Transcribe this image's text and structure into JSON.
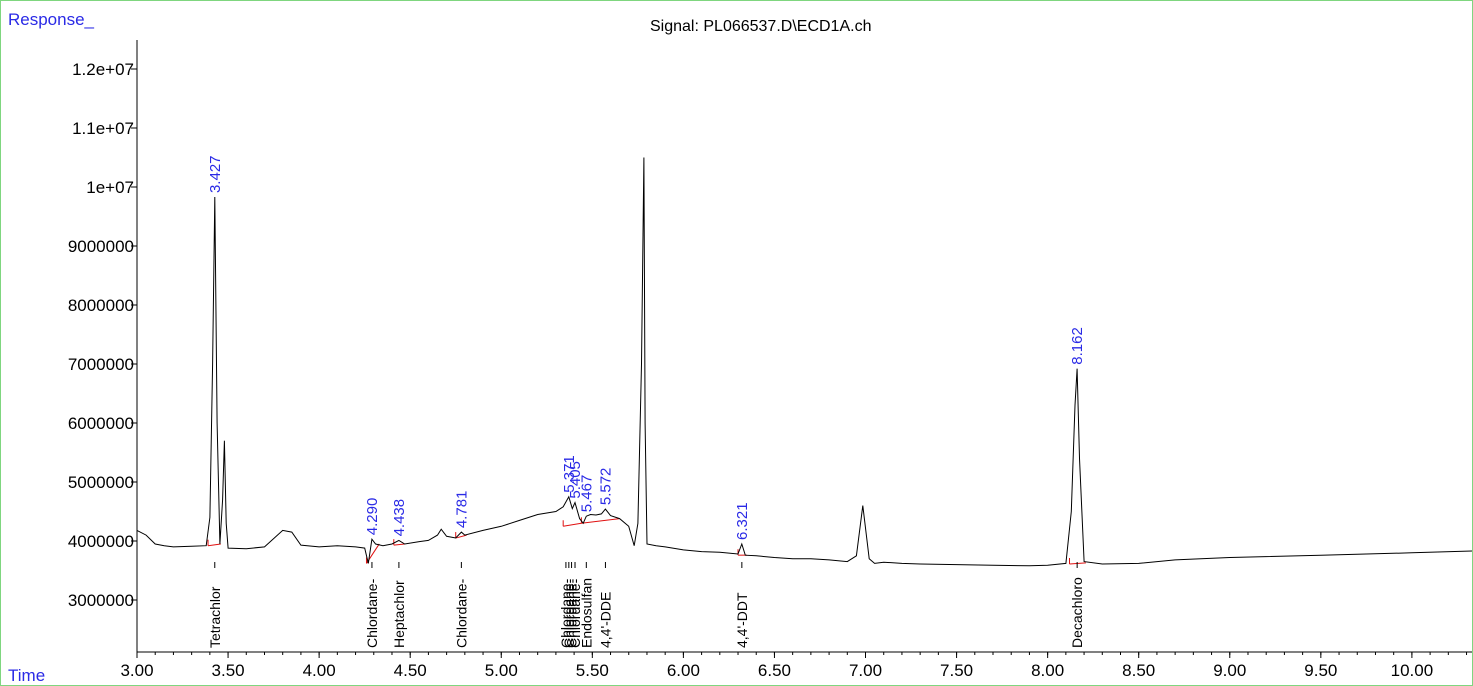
{
  "header": {
    "y_caption": "Response_",
    "x_caption": "Time",
    "title": "Signal: PL066537.D\\ECD1A.ch"
  },
  "chart_data": {
    "type": "line",
    "title": "Signal: PL066537.D\\ECD1A.ch",
    "xlabel": "Time",
    "ylabel": "Response_",
    "xlim": [
      3.0,
      10.33
    ],
    "ylim": [
      2150000,
      12600000
    ],
    "grid": false,
    "x_ticks": [
      3.0,
      3.5,
      4.0,
      4.5,
      5.0,
      5.5,
      6.0,
      6.5,
      7.0,
      7.5,
      8.0,
      8.5,
      9.0,
      9.5,
      10.0
    ],
    "x_tick_labels": [
      "3.00",
      "3.50",
      "4.00",
      "4.50",
      "5.00",
      "5.50",
      "6.00",
      "6.50",
      "7.00",
      "7.50",
      "8.00",
      "8.50",
      "9.00",
      "9.50",
      "10.00"
    ],
    "y_ticks": [
      3000000,
      4000000,
      5000000,
      6000000,
      7000000,
      8000000,
      9000000,
      10000000,
      11000000,
      12000000
    ],
    "y_tick_labels": [
      "3000000",
      "4000000",
      "5000000",
      "6000000",
      "7000000",
      "8000000",
      "9000000",
      "1e+07",
      "1.1e+07",
      "1.2e+07"
    ],
    "colors": {
      "trace": "#000000",
      "baseline": "#e01010",
      "rt_label": "#2a2ae6",
      "frame": "#7fd67f"
    },
    "x": [
      3.0,
      3.05,
      3.1,
      3.15,
      3.2,
      3.3,
      3.38,
      3.4,
      3.415,
      3.427,
      3.44,
      3.455,
      3.47,
      3.48,
      3.49,
      3.5,
      3.6,
      3.7,
      3.8,
      3.85,
      3.9,
      4.0,
      4.1,
      4.2,
      4.25,
      4.27,
      4.29,
      4.31,
      4.35,
      4.4,
      4.438,
      4.47,
      4.55,
      4.6,
      4.65,
      4.67,
      4.7,
      4.75,
      4.781,
      4.8,
      4.9,
      5.0,
      5.1,
      5.2,
      5.3,
      5.34,
      5.371,
      5.39,
      5.405,
      5.43,
      5.45,
      5.467,
      5.49,
      5.52,
      5.55,
      5.572,
      5.6,
      5.65,
      5.7,
      5.73,
      5.75,
      5.77,
      5.783,
      5.79,
      5.8,
      5.85,
      5.9,
      6.0,
      6.1,
      6.2,
      6.3,
      6.321,
      6.34,
      6.4,
      6.5,
      6.6,
      6.7,
      6.8,
      6.9,
      6.95,
      6.985,
      7.02,
      7.05,
      7.1,
      7.2,
      7.3,
      7.5,
      7.7,
      7.9,
      8.0,
      8.1,
      8.13,
      8.15,
      8.162,
      8.175,
      8.2,
      8.3,
      8.5,
      8.7,
      9.0,
      9.5,
      10.0,
      10.33
    ],
    "y": [
      4180000,
      4100000,
      3950000,
      3920000,
      3900000,
      3910000,
      3920000,
      4400000,
      7000000,
      9830000,
      6000000,
      3950000,
      4700000,
      5700000,
      4300000,
      3880000,
      3870000,
      3900000,
      4180000,
      4150000,
      3930000,
      3900000,
      3920000,
      3900000,
      3880000,
      3620000,
      4030000,
      3950000,
      3920000,
      3950000,
      4010000,
      3950000,
      3990000,
      4010000,
      4100000,
      4200000,
      4080000,
      4050000,
      4150000,
      4100000,
      4180000,
      4250000,
      4350000,
      4450000,
      4500000,
      4580000,
      4750000,
      4550000,
      4650000,
      4380000,
      4300000,
      4420000,
      4450000,
      4440000,
      4460000,
      4540000,
      4430000,
      4380000,
      4250000,
      3920000,
      4300000,
      7000000,
      10500000,
      6000000,
      3950000,
      3920000,
      3900000,
      3850000,
      3820000,
      3810000,
      3780000,
      3950000,
      3760000,
      3750000,
      3720000,
      3700000,
      3700000,
      3680000,
      3650000,
      3750000,
      4600000,
      3700000,
      3620000,
      3640000,
      3620000,
      3610000,
      3600000,
      3590000,
      3580000,
      3590000,
      3620000,
      4500000,
      6300000,
      6920000,
      5400000,
      3650000,
      3610000,
      3620000,
      3680000,
      3720000,
      3760000,
      3800000,
      3830000
    ],
    "peaks": [
      {
        "rt": "3.427",
        "x": 3.427,
        "y": 9830000
      },
      {
        "rt": "4.290",
        "x": 4.29,
        "y": 4030000
      },
      {
        "rt": "4.438",
        "x": 4.438,
        "y": 4010000
      },
      {
        "rt": "4.781",
        "x": 4.781,
        "y": 4150000
      },
      {
        "rt": "5.371",
        "x": 5.371,
        "y": 4750000
      },
      {
        "rt": "5.405",
        "x": 5.405,
        "y": 4650000
      },
      {
        "rt": "5.467",
        "x": 5.467,
        "y": 4420000
      },
      {
        "rt": "5.572",
        "x": 5.572,
        "y": 4540000
      },
      {
        "rt": "6.321",
        "x": 6.321,
        "y": 3950000
      },
      {
        "rt": "8.162",
        "x": 8.162,
        "y": 6920000
      }
    ],
    "baselines": [
      {
        "x1": 3.39,
        "x2": 3.46,
        "y1": 3920000,
        "y2": 3950000
      },
      {
        "x1": 4.26,
        "x2": 4.33,
        "y1": 3620000,
        "y2": 3950000
      },
      {
        "x1": 4.41,
        "x2": 4.47,
        "y1": 3930000,
        "y2": 3950000
      },
      {
        "x1": 4.75,
        "x2": 4.81,
        "y1": 4050000,
        "y2": 4100000
      },
      {
        "x1": 5.34,
        "x2": 5.44,
        "y1": 4250000,
        "y2": 4300000
      },
      {
        "x1": 5.44,
        "x2": 5.65,
        "y1": 4300000,
        "y2": 4380000
      },
      {
        "x1": 6.3,
        "x2": 6.35,
        "y1": 3760000,
        "y2": 3760000
      },
      {
        "x1": 8.12,
        "x2": 8.21,
        "y1": 3610000,
        "y2": 3630000
      }
    ],
    "compounds": [
      {
        "name": "Tetrachlor",
        "x": 3.427
      },
      {
        "name": "Chlordane-",
        "x": 4.29
      },
      {
        "name": "Heptachlor",
        "x": 4.438
      },
      {
        "name": "Chlordane-",
        "x": 4.781
      },
      {
        "name": "Chlordane-",
        "x": 5.355
      },
      {
        "name": "Chlordane-",
        "x": 5.371
      },
      {
        "name": "Chlordane-",
        "x": 5.386
      },
      {
        "name": "Chlordane-",
        "x": 5.405
      },
      {
        "name": "Endosulfan",
        "x": 5.467
      },
      {
        "name": "4,4'-DDE",
        "x": 5.572
      },
      {
        "name": "4,4'-DDT",
        "x": 6.321
      },
      {
        "name": "Decachloro",
        "x": 8.162
      }
    ]
  }
}
